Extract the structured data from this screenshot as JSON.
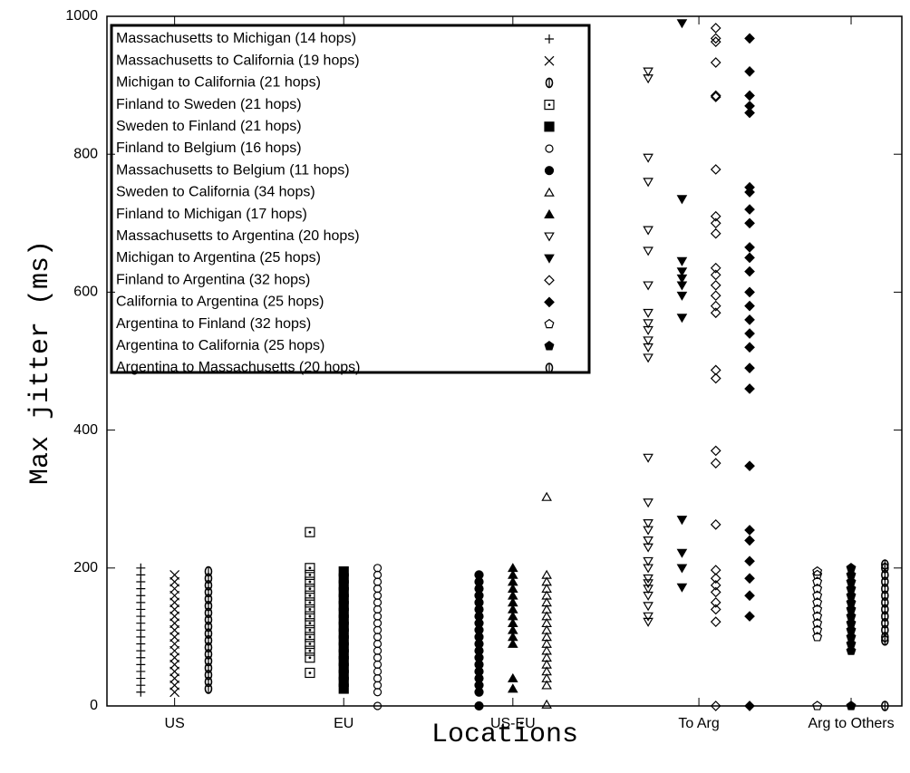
{
  "chart_data": {
    "type": "scatter",
    "xlabel": "Locations",
    "ylabel": "Max jitter (ms)",
    "xlim": [
      0.6,
      5.3
    ],
    "ylim": [
      0,
      1000
    ],
    "xticks": [
      {
        "value": 1,
        "label": "US"
      },
      {
        "value": 2,
        "label": "EU"
      },
      {
        "value": 3,
        "label": "US-EU"
      },
      {
        "value": 4.1,
        "label": "To Arg"
      },
      {
        "value": 5,
        "label": "Arg to Others"
      }
    ],
    "yticks": [
      0,
      200,
      400,
      600,
      800,
      1000
    ],
    "grid": false,
    "legend": "upper left",
    "series": [
      {
        "name": "Massachusetts to Michigan (14 hops)",
        "color": "#000000",
        "marker": "plus",
        "x": [
          0.8,
          0.8,
          0.8,
          0.8,
          0.8,
          0.8,
          0.8,
          0.8,
          0.8,
          0.8,
          0.8,
          0.8,
          0.8,
          0.8,
          0.8,
          0.8,
          0.8,
          0.8,
          0.8
        ],
        "values": [
          20,
          30,
          40,
          50,
          60,
          70,
          80,
          90,
          100,
          110,
          120,
          130,
          140,
          150,
          160,
          170,
          180,
          190,
          200
        ]
      },
      {
        "name": "Massachusetts to California (19 hops)",
        "color": "#000000",
        "marker": "cross",
        "x": [
          1,
          1,
          1,
          1,
          1,
          1,
          1,
          1,
          1,
          1,
          1,
          1,
          1,
          1,
          1,
          1,
          1,
          1
        ],
        "values": [
          20,
          30,
          40,
          50,
          60,
          70,
          80,
          90,
          100,
          110,
          120,
          130,
          140,
          150,
          160,
          170,
          180,
          190
        ]
      },
      {
        "name": "Michigan to California (21 hops)",
        "color": "#000000",
        "marker": "theta",
        "x": [
          1.2,
          1.2,
          1.2,
          1.2,
          1.2,
          1.2,
          1.2,
          1.2,
          1.2,
          1.2,
          1.2,
          1.2,
          1.2,
          1.2,
          1.2,
          1.2,
          1.2,
          1.2
        ],
        "values": [
          25,
          35,
          45,
          55,
          65,
          75,
          85,
          95,
          105,
          115,
          125,
          135,
          145,
          155,
          165,
          175,
          185,
          195
        ]
      },
      {
        "name": "Finland to Sweden (21 hops)",
        "color": "#000000",
        "marker": "square-dot",
        "x": [
          1.8,
          1.8,
          1.8,
          1.8,
          1.8,
          1.8,
          1.8,
          1.8,
          1.8,
          1.8,
          1.8,
          1.8,
          1.8,
          1.8,
          1.8,
          1.8
        ],
        "values": [
          48,
          70,
          80,
          90,
          100,
          110,
          120,
          130,
          140,
          150,
          160,
          170,
          180,
          190,
          200,
          252
        ]
      },
      {
        "name": "Sweden to Finland (21 hops)",
        "color": "#000000",
        "marker": "square-filled",
        "x": [
          2,
          2,
          2,
          2,
          2,
          2,
          2,
          2,
          2,
          2,
          2,
          2,
          2,
          2,
          2,
          2,
          2,
          2
        ],
        "values": [
          25,
          35,
          45,
          55,
          65,
          75,
          85,
          95,
          105,
          115,
          125,
          135,
          145,
          155,
          165,
          175,
          185,
          195
        ]
      },
      {
        "name": "Finland to Belgium (16 hops)",
        "color": "#000000",
        "marker": "circle-small",
        "x": [
          2.2,
          2.2,
          2.2,
          2.2,
          2.2,
          2.2,
          2.2,
          2.2,
          2.2,
          2.2,
          2.2,
          2.2,
          2.2,
          2.2,
          2.2,
          2.2,
          2.2,
          2.2,
          2.2,
          2.2
        ],
        "values": [
          0,
          20,
          30,
          40,
          50,
          60,
          70,
          80,
          90,
          100,
          110,
          120,
          130,
          140,
          150,
          160,
          170,
          180,
          190,
          200
        ]
      },
      {
        "name": "Massachusetts to Belgium (11 hops)",
        "color": "#000000",
        "marker": "circle-filled",
        "x": [
          2.8,
          2.8,
          2.8,
          2.8,
          2.8,
          2.8,
          2.8,
          2.8,
          2.8,
          2.8,
          2.8,
          2.8,
          2.8,
          2.8,
          2.8,
          2.8,
          2.8,
          2.8,
          2.8
        ],
        "values": [
          0,
          20,
          30,
          40,
          50,
          60,
          70,
          80,
          90,
          100,
          110,
          120,
          130,
          140,
          150,
          160,
          170,
          180,
          190
        ]
      },
      {
        "name": "Sweden to California (34 hops)",
        "color": "#000000",
        "marker": "triangle",
        "x": [
          3.2,
          3.2,
          3.2,
          3.2,
          3.2,
          3.2,
          3.2,
          3.2,
          3.2,
          3.2,
          3.2,
          3.2,
          3.2,
          3.2,
          3.2,
          3.2,
          3.2,
          3.2,
          3.2
        ],
        "values": [
          2,
          30,
          40,
          50,
          60,
          70,
          80,
          90,
          100,
          110,
          120,
          130,
          140,
          150,
          160,
          170,
          180,
          190,
          303
        ]
      },
      {
        "name": "Finland to Michigan (17 hops)",
        "color": "#000000",
        "marker": "triangle-filled",
        "x": [
          3,
          3,
          3,
          3,
          3,
          3,
          3,
          3,
          3,
          3,
          3,
          3,
          3,
          3
        ],
        "values": [
          25,
          40,
          90,
          100,
          110,
          120,
          130,
          140,
          150,
          160,
          170,
          180,
          190,
          200
        ]
      },
      {
        "name": "Massachusetts to Argentina (20 hops)",
        "color": "#000000",
        "marker": "triangle-down",
        "x": [
          3.8,
          3.8,
          3.8,
          3.8,
          3.8,
          3.8,
          3.8,
          3.8,
          3.8,
          3.8,
          3.8,
          3.8,
          3.8,
          3.8,
          3.8,
          3.8,
          3.8,
          3.8,
          3.8,
          3.8,
          3.8,
          3.8,
          3.8,
          3.8,
          3.8,
          3.8,
          3.8,
          3.8
        ],
        "values": [
          122,
          130,
          145,
          160,
          170,
          178,
          185,
          200,
          210,
          230,
          240,
          255,
          265,
          295,
          360,
          505,
          520,
          530,
          545,
          555,
          570,
          610,
          660,
          690,
          760,
          795,
          910,
          920
        ]
      },
      {
        "name": "Michigan to Argentina (25 hops)",
        "color": "#000000",
        "marker": "triangle-down-filled",
        "x": [
          4,
          4,
          4,
          4,
          4,
          4,
          4,
          4,
          4,
          4,
          4,
          4
        ],
        "values": [
          172,
          200,
          222,
          270,
          563,
          595,
          610,
          620,
          630,
          645,
          735,
          990
        ]
      },
      {
        "name": "Finland to Argentina (32 hops)",
        "color": "#000000",
        "marker": "diamond",
        "x": [
          4.2,
          4.2,
          4.2,
          4.2,
          4.2,
          4.2,
          4.2,
          4.2,
          4.2,
          4.2,
          4.2,
          4.2,
          4.2,
          4.2,
          4.2,
          4.2,
          4.2,
          4.2,
          4.2,
          4.2,
          4.2,
          4.2,
          4.2,
          4.2,
          4.2,
          4.2,
          4.2,
          4.2,
          4.2
        ],
        "values": [
          0,
          122,
          140,
          150,
          165,
          175,
          185,
          197,
          263,
          352,
          370,
          475,
          487,
          570,
          580,
          595,
          610,
          625,
          635,
          685,
          700,
          710,
          778,
          883,
          885,
          933,
          963,
          968,
          983
        ]
      },
      {
        "name": "California to Argentina (25 hops)",
        "color": "#000000",
        "marker": "diamond-filled",
        "x": [
          4.4,
          4.4,
          4.4,
          4.4,
          4.4,
          4.4,
          4.4,
          4.4,
          4.4,
          4.4,
          4.4,
          4.4,
          4.4,
          4.4,
          4.4,
          4.4,
          4.4,
          4.4,
          4.4,
          4.4,
          4.4,
          4.4,
          4.4,
          4.4,
          4.4,
          4.4,
          4.4
        ],
        "values": [
          0,
          130,
          160,
          185,
          210,
          240,
          255,
          348,
          460,
          490,
          520,
          540,
          560,
          580,
          600,
          630,
          650,
          665,
          700,
          720,
          745,
          752,
          860,
          870,
          885,
          920,
          968
        ]
      },
      {
        "name": "Argentina to Finland (32 hops)",
        "color": "#000000",
        "marker": "pentagon",
        "x": [
          4.8,
          4.8,
          4.8,
          4.8,
          4.8,
          4.8,
          4.8,
          4.8,
          4.8,
          4.8,
          4.8,
          4.8
        ],
        "values": [
          0,
          100,
          110,
          120,
          130,
          140,
          150,
          160,
          170,
          180,
          190,
          195
        ]
      },
      {
        "name": "Argentina to California (25 hops)",
        "color": "#000000",
        "marker": "pentagon-filled",
        "x": [
          5,
          5,
          5,
          5,
          5,
          5,
          5,
          5,
          5,
          5,
          5,
          5,
          5,
          5
        ],
        "values": [
          0,
          80,
          90,
          100,
          110,
          120,
          130,
          140,
          150,
          160,
          170,
          180,
          190,
          200
        ]
      },
      {
        "name": "Argentina to Massachusetts (20 hops)",
        "color": "#000000",
        "marker": "theta",
        "x": [
          5.2,
          5.2,
          5.2,
          5.2,
          5.2,
          5.2,
          5.2,
          5.2,
          5.2,
          5.2,
          5.2,
          5.2,
          5.2,
          5.2
        ],
        "values": [
          0,
          95,
          100,
          110,
          120,
          130,
          140,
          150,
          160,
          170,
          180,
          190,
          200,
          205
        ]
      }
    ]
  }
}
